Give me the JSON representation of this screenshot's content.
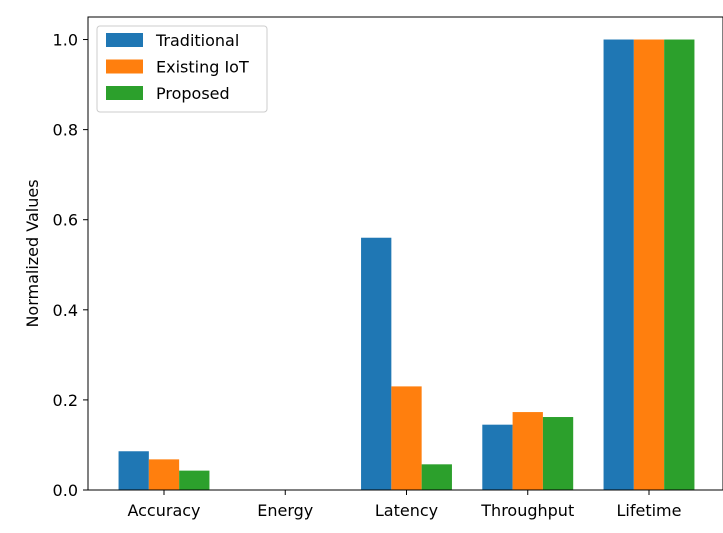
{
  "chart_data": {
    "type": "bar",
    "title": "",
    "xlabel": "",
    "ylabel": "Normalized Values",
    "categories": [
      "Accuracy",
      "Energy",
      "Latency",
      "Throughput",
      "Lifetime"
    ],
    "series": [
      {
        "name": "Traditional",
        "color": "#1f77b4",
        "values": [
          0.086,
          0.0,
          0.56,
          0.145,
          1.0
        ]
      },
      {
        "name": "Existing IoT",
        "color": "#ff7f0e",
        "values": [
          0.068,
          0.0,
          0.23,
          0.173,
          1.0
        ]
      },
      {
        "name": "Proposed",
        "color": "#2ca02c",
        "values": [
          0.043,
          0.0,
          0.057,
          0.162,
          1.0
        ]
      }
    ],
    "ylim": [
      0.0,
      1.05
    ],
    "yticks": [
      "0.0",
      "0.2",
      "0.4",
      "0.6",
      "0.8",
      "1.0"
    ],
    "grid": false,
    "legend_position": "top-left"
  }
}
